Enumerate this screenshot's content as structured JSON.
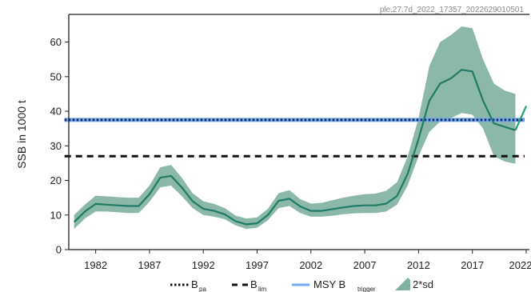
{
  "watermark": "ple.27.7d_2022_17357_2022629010501",
  "chart_data": {
    "type": "line",
    "ylabel": "SSB in 1000 t",
    "xlabel": "",
    "xlim": [
      1979.5,
      2022.3
    ],
    "ylim": [
      0,
      68
    ],
    "x_ticks": [
      1982,
      1987,
      1992,
      1997,
      2002,
      2007,
      2012,
      2017,
      2022
    ],
    "x_tick_labels": [
      "1982",
      "1987",
      "1992",
      "1997",
      "2002",
      "2007",
      "2012",
      "2017",
      "2022"
    ],
    "y_ticks": [
      0,
      10,
      20,
      30,
      40,
      50,
      60
    ],
    "y_tick_labels": [
      "0",
      "10",
      "20",
      "30",
      "40",
      "50",
      "60"
    ],
    "grid": false,
    "legend_placement": "bottom",
    "series": [
      {
        "id": "ssb",
        "x": [
          1980,
          1981,
          1982,
          1983,
          1984,
          1985,
          1986,
          1987,
          1988,
          1989,
          1990,
          1991,
          1992,
          1993,
          1994,
          1995,
          1996,
          1997,
          1998,
          1999,
          2000,
          2001,
          2002,
          2003,
          2004,
          2005,
          2006,
          2007,
          2008,
          2009,
          2010,
          2011,
          2012,
          2013,
          2014,
          2015,
          2016,
          2017,
          2018,
          2019,
          2020,
          2021
        ],
        "y": [
          8,
          11,
          13.2,
          13,
          12.8,
          12.6,
          12.6,
          16,
          20.8,
          21.3,
          18,
          14,
          11.8,
          11.2,
          10.2,
          8.2,
          7.3,
          7.6,
          10,
          14.1,
          14.7,
          12.5,
          11.2,
          11.2,
          11.7,
          12.2,
          12.6,
          12.8,
          12.8,
          13.3,
          15.5,
          22,
          32,
          43,
          48,
          49.5,
          52,
          51.5,
          43,
          36.5,
          35.5,
          34.5
        ],
        "color": "#1f7a66"
      },
      {
        "id": "ssb_recent",
        "x": [
          2021,
          2022
        ],
        "y": [
          34.5,
          41.5
        ],
        "color": "#1f9e80"
      }
    ],
    "band": {
      "id": "2sd",
      "x": [
        1980,
        1981,
        1982,
        1983,
        1984,
        1985,
        1986,
        1987,
        1988,
        1989,
        1990,
        1991,
        1992,
        1993,
        1994,
        1995,
        1996,
        1997,
        1998,
        1999,
        2000,
        2001,
        2002,
        2003,
        2004,
        2005,
        2006,
        2007,
        2008,
        2009,
        2010,
        2011,
        2012,
        2013,
        2014,
        2015,
        2016,
        2017,
        2018,
        2019,
        2020,
        2021
      ],
      "lower": [
        6,
        9,
        11,
        11,
        10.8,
        10.6,
        10.6,
        13.8,
        18,
        18.5,
        15.5,
        12,
        10,
        9.5,
        8.8,
        7,
        6,
        6.3,
        8.5,
        12,
        12.6,
        10.6,
        9.5,
        9.5,
        9.8,
        10.2,
        10.5,
        10.6,
        10.6,
        11,
        13,
        18.6,
        27,
        34,
        37,
        38,
        39.5,
        39,
        35,
        27,
        25.5,
        24.8
      ],
      "upper": [
        10,
        13,
        15.6,
        15.4,
        15.2,
        15,
        15,
        18.5,
        23.8,
        24.5,
        20.8,
        16.3,
        14,
        13.2,
        12,
        9.8,
        9,
        9.3,
        11.8,
        16.3,
        17.2,
        14.6,
        13.3,
        13.5,
        14.3,
        15,
        15.6,
        16,
        16.2,
        17,
        19.5,
        27,
        38,
        53,
        60,
        62,
        64.5,
        64,
        55,
        48,
        46,
        45
      ],
      "color": "#2e7d62",
      "opacity": 0.55
    },
    "hlines": [
      {
        "id": "msy_btrigger",
        "y": 37.5,
        "color": "#6fa8f5",
        "style": "solid"
      },
      {
        "id": "bpa",
        "y": 37.5,
        "color": "#1b2a5c",
        "style": "dotted"
      },
      {
        "id": "blim",
        "y": 27,
        "color": "#111111",
        "style": "dashed"
      }
    ],
    "legend": {
      "bpa_main": "B",
      "bpa_sub": "pa",
      "blim_main": "B",
      "blim_sub": "lim",
      "msy_main": "MSY B",
      "msy_sub": "trigger",
      "band_label": "2*sd"
    }
  }
}
